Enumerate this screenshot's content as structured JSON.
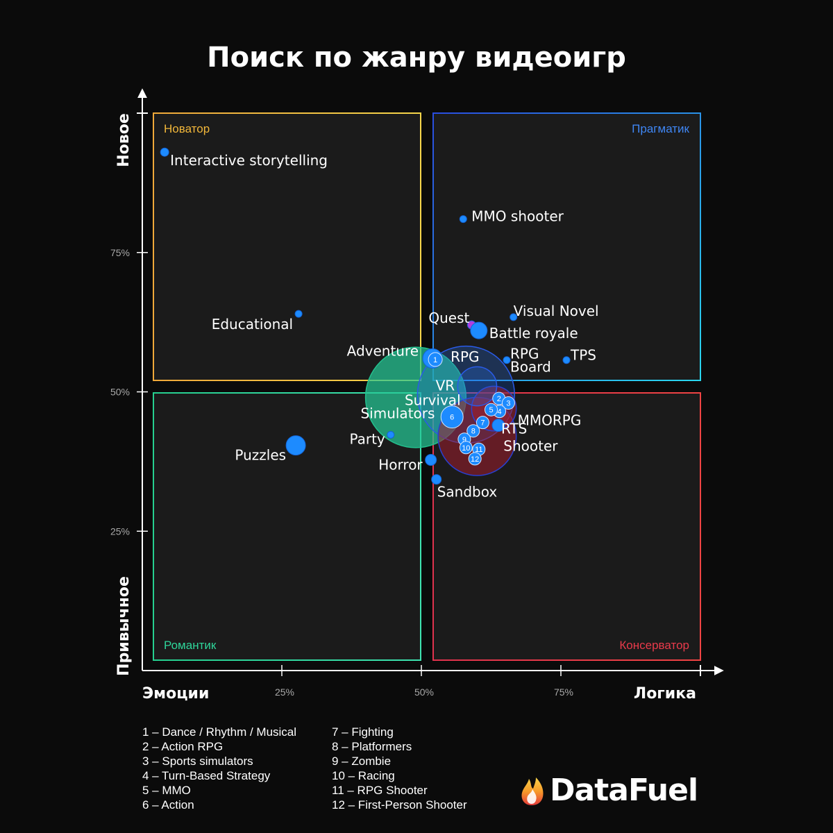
{
  "colors": {
    "background": "#0b0b0b",
    "innovator": "#f2b73a",
    "pragmatic": "#3f86f4",
    "romantic": "#2fd59a",
    "conservative": "#e93a4b",
    "point": "#1d8bff"
  },
  "chart_data": {
    "type": "scatter",
    "title": "Поиск по жанру видеоигр",
    "xlabel_left": "Эмоции",
    "xlabel_right": "Логика",
    "ylabel_top": "Новое",
    "ylabel_bottom": "Привычное",
    "xlim": [
      0,
      1
    ],
    "ylim": [
      0,
      1
    ],
    "xticks": [
      {
        "value": 0.25,
        "label": "25%"
      },
      {
        "value": 0.5,
        "label": "50%"
      },
      {
        "value": 0.75,
        "label": "75%"
      }
    ],
    "yticks": [
      {
        "value": 0.25,
        "label": "25%"
      },
      {
        "value": 0.5,
        "label": "50%"
      },
      {
        "value": 0.75,
        "label": "75%"
      }
    ],
    "quadrants": [
      {
        "name": "innovator",
        "label": "Новатор",
        "position": "top-left"
      },
      {
        "name": "pragmatic",
        "label": "Прагматик",
        "position": "top-right"
      },
      {
        "name": "romantic",
        "label": "Романтик",
        "position": "bottom-left"
      },
      {
        "name": "conservative",
        "label": "Консерватор",
        "position": "bottom-right"
      }
    ],
    "big_circles": [
      {
        "label": "Simulators",
        "x": 0.49,
        "y": 0.49,
        "r": 0.09,
        "quadrant": "romantic"
      },
      {
        "label": "Survival",
        "x": 0.58,
        "y": 0.495,
        "r": 0.087,
        "quadrant": "pragmatic"
      },
      {
        "label": "Shooter",
        "x": 0.6,
        "y": 0.42,
        "r": 0.07,
        "quadrant": "conservative"
      },
      {
        "label": "MMORPG",
        "x": 0.63,
        "y": 0.47,
        "r": 0.04,
        "quadrant": "conservative"
      },
      {
        "label": "VR",
        "x": 0.6,
        "y": 0.51,
        "r": 0.035,
        "quadrant": "pragmatic"
      }
    ],
    "points": [
      {
        "label": "Interactive storytelling",
        "x": 0.04,
        "y": 0.93,
        "size": 6
      },
      {
        "label": "MMO shooter",
        "x": 0.575,
        "y": 0.81,
        "size": 5
      },
      {
        "label": "Educational",
        "x": 0.28,
        "y": 0.64,
        "size": 5
      },
      {
        "label": "Visual Novel",
        "x": 0.665,
        "y": 0.634,
        "size": 5
      },
      {
        "label": "Quest",
        "x": 0.59,
        "y": 0.62,
        "size": 6
      },
      {
        "label": "Battle royale",
        "x": 0.603,
        "y": 0.61,
        "size": 12
      },
      {
        "label": "Adventure",
        "x": 0.52,
        "y": 0.56,
        "size": 14
      },
      {
        "label": "RPG",
        "x": 0.525,
        "y": 0.558,
        "size": 9
      },
      {
        "label": "RPG Board",
        "x": 0.653,
        "y": 0.557,
        "size": 5
      },
      {
        "label": "TPS",
        "x": 0.76,
        "y": 0.557,
        "size": 5
      },
      {
        "label": "Puzzles",
        "x": 0.275,
        "y": 0.404,
        "size": 14
      },
      {
        "label": "Party",
        "x": 0.445,
        "y": 0.423,
        "size": 5
      },
      {
        "label": "Horror",
        "x": 0.517,
        "y": 0.378,
        "size": 8
      },
      {
        "label": "Sandbox",
        "x": 0.527,
        "y": 0.343,
        "size": 7
      },
      {
        "label": "RTS",
        "x": 0.638,
        "y": 0.44,
        "size": 9
      }
    ],
    "numbered_points": [
      {
        "n": "1",
        "x": 0.525,
        "y": 0.558
      },
      {
        "n": "2",
        "x": 0.639,
        "y": 0.488
      },
      {
        "n": "3",
        "x": 0.656,
        "y": 0.48
      },
      {
        "n": "4",
        "x": 0.64,
        "y": 0.465
      },
      {
        "n": "5",
        "x": 0.625,
        "y": 0.468
      },
      {
        "n": "6",
        "x": 0.555,
        "y": 0.455
      },
      {
        "n": "7",
        "x": 0.61,
        "y": 0.445
      },
      {
        "n": "8",
        "x": 0.593,
        "y": 0.43
      },
      {
        "n": "9",
        "x": 0.577,
        "y": 0.415
      },
      {
        "n": "10",
        "x": 0.58,
        "y": 0.4
      },
      {
        "n": "11",
        "x": 0.603,
        "y": 0.397
      },
      {
        "n": "12",
        "x": 0.596,
        "y": 0.38
      }
    ]
  },
  "legend": {
    "col1": [
      "1 – Dance / Rhythm / Musical",
      "2 – Action RPG",
      "3 – Sports simulators",
      "4 – Turn-Based Strategy",
      "5 – MMO",
      "6 – Action"
    ],
    "col2": [
      "7 – Fighting",
      "8 – Platformers",
      "9 – Zombie",
      "10 – Racing",
      "11 – RPG Shooter",
      "12 – First-Person Shooter"
    ]
  },
  "brand": {
    "name": "DataFuel",
    "icon": "flame-icon"
  }
}
